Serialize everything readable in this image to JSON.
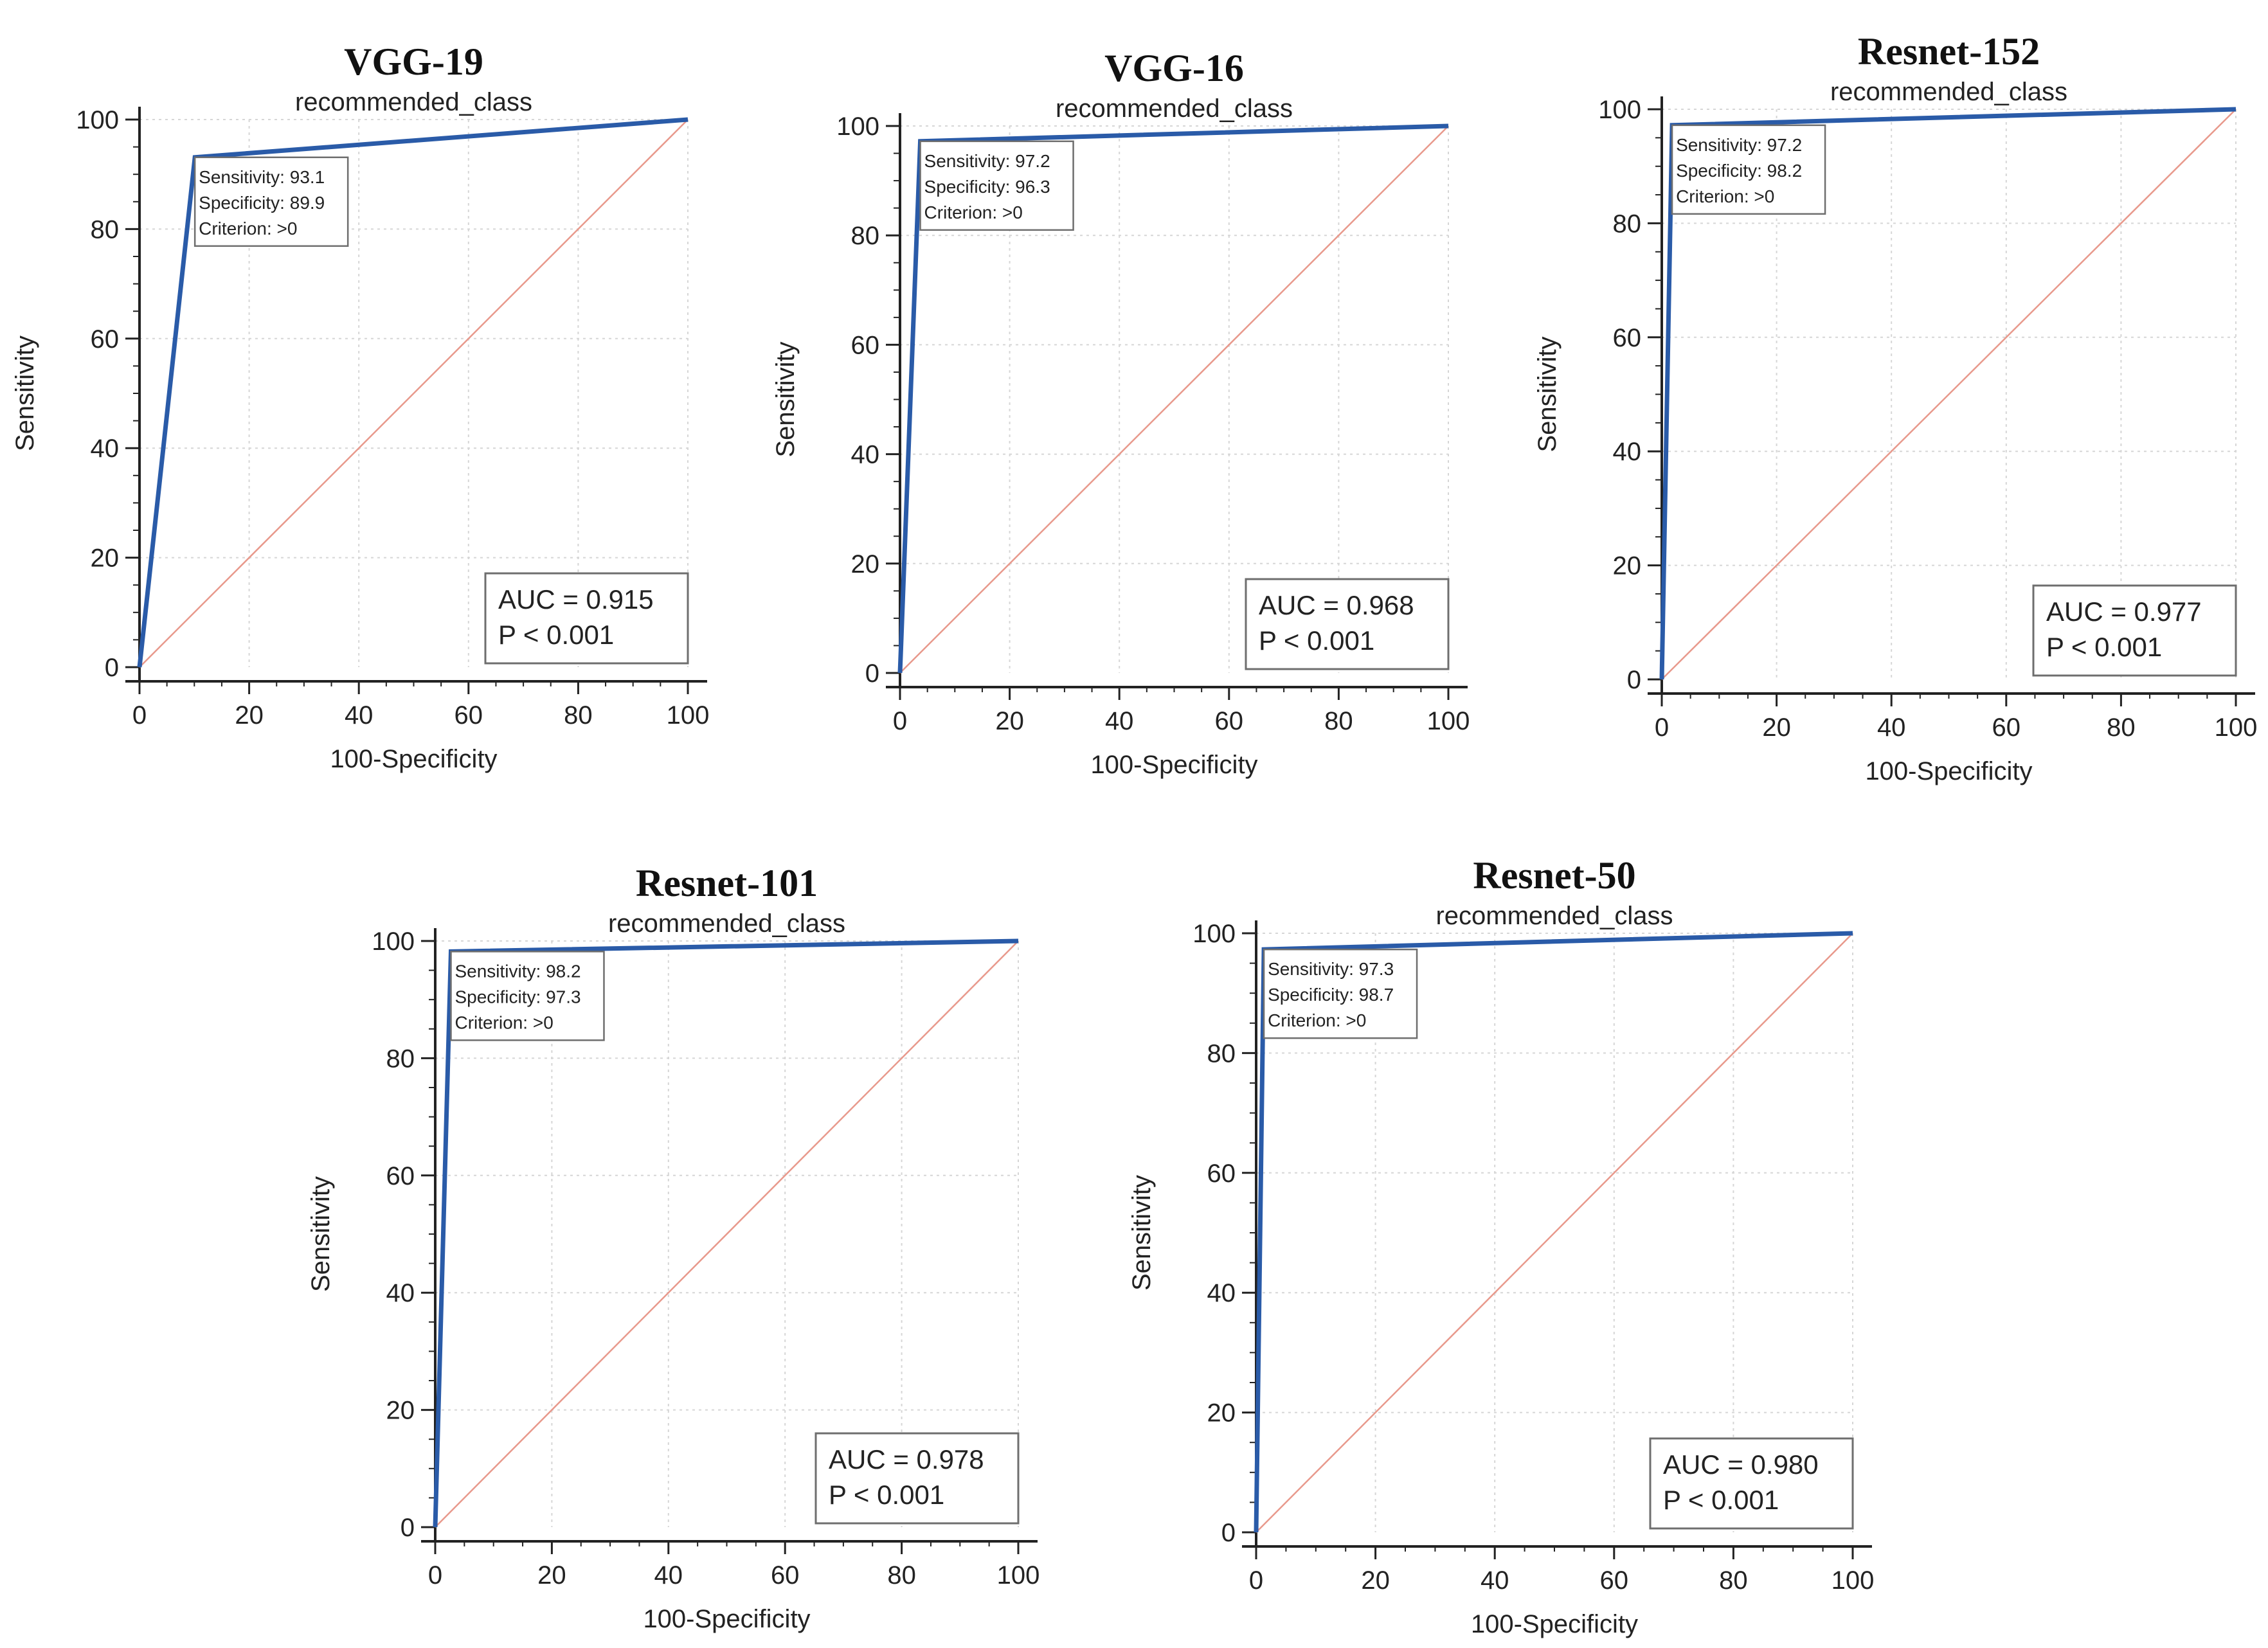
{
  "figure": {
    "colors": {
      "roc_line": "#2a5ba8",
      "diagonal": "#e8998c",
      "grid": "#d6d6d6",
      "axis": "#222222",
      "box_border": "#6e6e6e"
    }
  },
  "chart_data": [
    {
      "type": "line",
      "title": "VGG-19",
      "subtitle": "recommended_class",
      "xlabel": "100-Specificity",
      "ylabel": "Sensitivity",
      "xlim": [
        0,
        100
      ],
      "ylim": [
        0,
        100
      ],
      "xticks": [
        "0",
        "20",
        "40",
        "60",
        "80",
        "100"
      ],
      "yticks": [
        "0",
        "20",
        "40",
        "60",
        "80",
        "100"
      ],
      "grid": true,
      "series": [
        {
          "name": "ROC",
          "x": [
            0,
            10.1,
            100
          ],
          "y": [
            0,
            93.1,
            100
          ]
        },
        {
          "name": "Reference",
          "x": [
            0,
            100
          ],
          "y": [
            0,
            100
          ]
        }
      ],
      "info": [
        "Sensitivity: 93.1",
        "Specificity: 89.9",
        "Criterion: >0"
      ],
      "auc_box": [
        "AUC = 0.915",
        "P < 0.001"
      ],
      "auc_position": "bottom-right"
    },
    {
      "type": "line",
      "title": "VGG-16",
      "subtitle": "recommended_class",
      "xlabel": "100-Specificity",
      "ylabel": "Sensitivity",
      "xlim": [
        0,
        100
      ],
      "ylim": [
        0,
        100
      ],
      "xticks": [
        "0",
        "20",
        "40",
        "60",
        "80",
        "100"
      ],
      "yticks": [
        "0",
        "20",
        "40",
        "60",
        "80",
        "100"
      ],
      "grid": true,
      "series": [
        {
          "name": "ROC",
          "x": [
            0,
            3.7,
            100
          ],
          "y": [
            0,
            97.2,
            100
          ]
        },
        {
          "name": "Reference",
          "x": [
            0,
            100
          ],
          "y": [
            0,
            100
          ]
        }
      ],
      "info": [
        "Sensitivity: 97.2",
        "Specificity: 96.3",
        "Criterion: >0"
      ],
      "auc_box": [
        "AUC = 0.968",
        "P < 0.001"
      ],
      "auc_position": "bottom-right"
    },
    {
      "type": "line",
      "title": "Resnet-152",
      "subtitle": "recommended_class",
      "xlabel": "100-Specificity",
      "ylabel": "Sensitivity",
      "xlim": [
        0,
        100
      ],
      "ylim": [
        0,
        100
      ],
      "xticks": [
        "0",
        "20",
        "40",
        "60",
        "80",
        "100"
      ],
      "yticks": [
        "0",
        "20",
        "40",
        "60",
        "80",
        "100"
      ],
      "grid": true,
      "series": [
        {
          "name": "ROC",
          "x": [
            0,
            1.8,
            100
          ],
          "y": [
            0,
            97.2,
            100
          ]
        },
        {
          "name": "Reference",
          "x": [
            0,
            100
          ],
          "y": [
            0,
            100
          ]
        }
      ],
      "info": [
        "Sensitivity: 97.2",
        "Specificity: 98.2",
        "Criterion: >0"
      ],
      "auc_box": [
        "AUC = 0.977",
        "P < 0.001"
      ],
      "auc_position": "bottom-right"
    },
    {
      "type": "line",
      "title": "Resnet-101",
      "subtitle": "recommended_class",
      "xlabel": "100-Specificity",
      "ylabel": "Sensitivity",
      "xlim": [
        0,
        100
      ],
      "ylim": [
        0,
        100
      ],
      "xticks": [
        "0",
        "20",
        "40",
        "60",
        "80",
        "100"
      ],
      "yticks": [
        "0",
        "20",
        "40",
        "60",
        "80",
        "100"
      ],
      "grid": true,
      "series": [
        {
          "name": "ROC",
          "x": [
            0,
            2.7,
            100
          ],
          "y": [
            0,
            98.2,
            100
          ]
        },
        {
          "name": "Reference",
          "x": [
            0,
            100
          ],
          "y": [
            0,
            100
          ]
        }
      ],
      "info": [
        "Sensitivity: 98.2",
        "Specificity: 97.3",
        "Criterion: >0"
      ],
      "auc_box": [
        "AUC = 0.978",
        "P < 0.001"
      ],
      "auc_position": "bottom-right"
    },
    {
      "type": "line",
      "title": "Resnet-50",
      "subtitle": "recommended_class",
      "xlabel": "100-Specificity",
      "ylabel": "Sensitivity",
      "xlim": [
        0,
        100
      ],
      "ylim": [
        0,
        100
      ],
      "xticks": [
        "0",
        "20",
        "40",
        "60",
        "80",
        "100"
      ],
      "yticks": [
        "0",
        "20",
        "40",
        "60",
        "80",
        "100"
      ],
      "grid": true,
      "series": [
        {
          "name": "ROC",
          "x": [
            0,
            1.3,
            100
          ],
          "y": [
            0,
            97.3,
            100
          ]
        },
        {
          "name": "Reference",
          "x": [
            0,
            100
          ],
          "y": [
            0,
            100
          ]
        }
      ],
      "info": [
        "Sensitivity: 97.3",
        "Specificity: 98.7",
        "Criterion: >0"
      ],
      "auc_box": [
        "AUC = 0.980",
        "P < 0.001"
      ],
      "auc_position": "bottom-right"
    }
  ]
}
